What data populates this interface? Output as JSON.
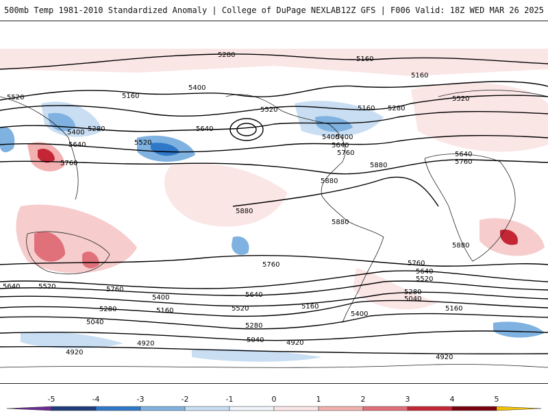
{
  "header": {
    "title_left": "500mb Temp 1981-2010 Standardized Anomaly | College of DuPage NEXLAB",
    "title_right": "12Z GFS | F006 Valid: 18Z WED MAR 26 2025"
  },
  "colorbar": {
    "ticks": [
      "-5",
      "-4",
      "-3",
      "-2",
      "-1",
      "0",
      "1",
      "2",
      "3",
      "4",
      "5"
    ],
    "colors": [
      "#6a2c91",
      "#1f3d7a",
      "#2f78c8",
      "#7fb2e0",
      "#c9def2",
      "#eef4fa",
      "#fbe6e6",
      "#f2b0b0",
      "#e0707a",
      "#c42636",
      "#7a0010",
      "#f2c200"
    ]
  },
  "contour_labels": [
    "5280",
    "5160",
    "5160",
    "5520",
    "5400",
    "5160",
    "5400",
    "5280",
    "5640",
    "5520",
    "5640",
    "5760",
    "5400",
    "5520",
    "5160",
    "5280",
    "5520",
    "5400",
    "5640",
    "5760",
    "5880",
    "5640",
    "5760",
    "5880",
    "5880",
    "5880",
    "5880",
    "5760",
    "5760",
    "5640",
    "5640",
    "5520",
    "5760",
    "5640",
    "5520",
    "5400",
    "5160",
    "5280",
    "5520",
    "5400",
    "5280",
    "5160",
    "5040",
    "5040",
    "4920",
    "4920",
    "4920",
    "4920",
    "5280",
    "5040",
    "5160"
  ]
}
